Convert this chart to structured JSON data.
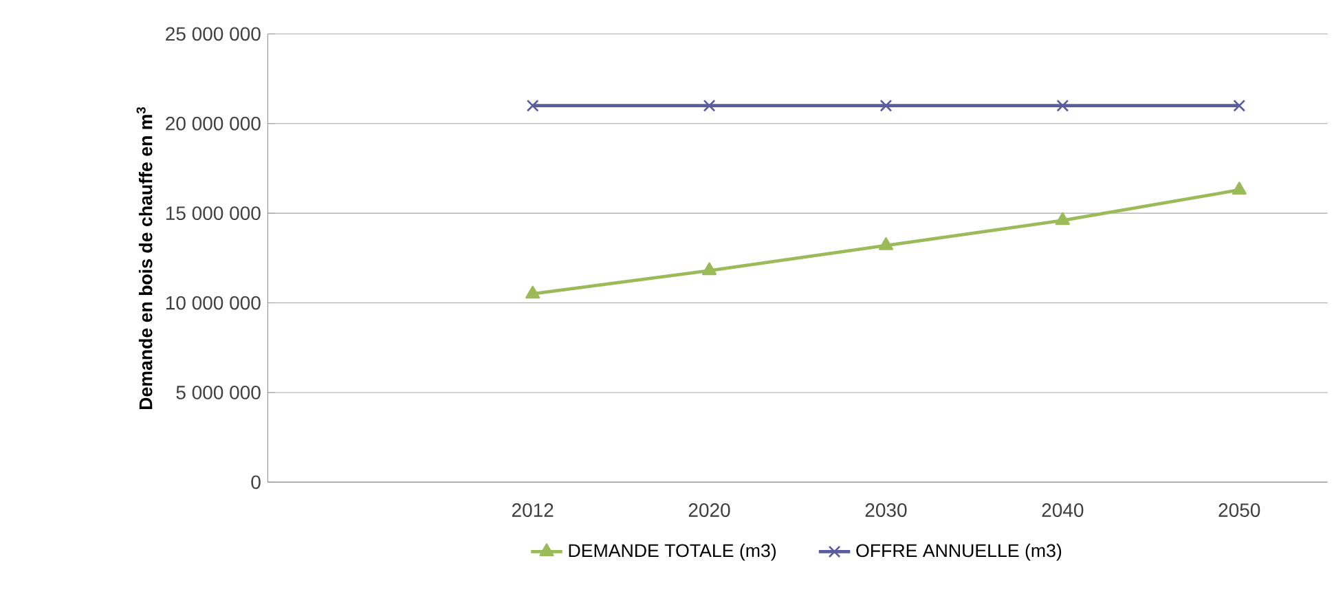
{
  "chart_data": {
    "type": "line",
    "ylabel": "Demande en bois de chauffe en m$^{3}$",
    "categories": [
      null,
      "2012",
      "2020",
      "2030",
      "2040",
      "2050"
    ],
    "series": [
      {
        "name": "DEMANDE TOTALE (m3)",
        "color": "#9bbb59",
        "marker": "triangle",
        "values": [
          null,
          10500000,
          11800000,
          13200000,
          14600000,
          16300000
        ]
      },
      {
        "name": "OFFRE ANNUELLE (m3)",
        "color": "#5b5b9f",
        "marker": "cross",
        "values": [
          null,
          21000000,
          21000000,
          21000000,
          21000000,
          21000000
        ]
      }
    ],
    "ylim": [
      0,
      25000000
    ],
    "yticks": [
      {
        "value": 0,
        "label": "0"
      },
      {
        "value": 5000000,
        "label": "5 000 000"
      },
      {
        "value": 10000000,
        "label": "10 000 000"
      },
      {
        "value": 15000000,
        "label": "15 000 000"
      },
      {
        "value": 20000000,
        "label": "20 000 000"
      },
      {
        "value": 25000000,
        "label": "25 000 000"
      }
    ],
    "grid": "y",
    "legend": "bottom"
  }
}
